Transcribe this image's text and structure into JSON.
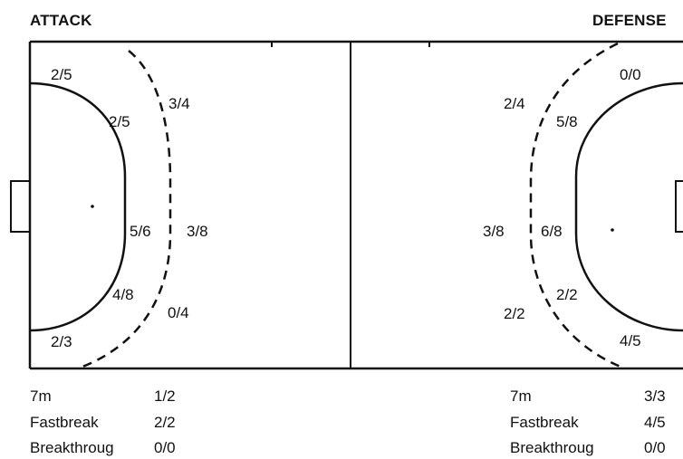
{
  "headers": {
    "attack": "ATTACK",
    "defense": "DEFENSE"
  },
  "attack": {
    "zones": {
      "wing_top_inner": "2/5",
      "back_top_inner": "2/5",
      "back_top_outer": "3/4",
      "center_inner": "5/6",
      "center_outer": "3/8",
      "back_bottom_inner": "4/8",
      "back_bottom_outer": "0/4",
      "wing_bottom_inner": "2/3"
    },
    "stats": [
      {
        "label": "7m",
        "value": "1/2"
      },
      {
        "label": "Fastbreak",
        "value": "2/2"
      },
      {
        "label": "Breakthroug",
        "value": "0/0"
      }
    ]
  },
  "defense": {
    "zones": {
      "wing_top_inner": "0/0",
      "back_top_inner": "5/8",
      "back_top_outer": "2/4",
      "center_inner": "6/8",
      "center_outer": "3/8",
      "back_bottom_inner": "2/2",
      "back_bottom_outer": "2/2",
      "wing_bottom_inner": "4/5"
    },
    "stats": [
      {
        "label": "7m",
        "value": "3/3"
      },
      {
        "label": "Fastbreak",
        "value": "4/5"
      },
      {
        "label": "Breakthroug",
        "value": "0/0"
      }
    ]
  }
}
